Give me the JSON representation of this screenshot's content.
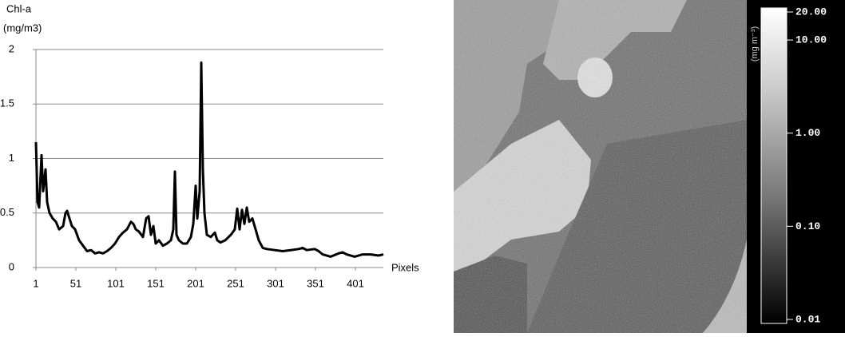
{
  "chart_data": {
    "type": "line",
    "ylabel": [
      "Chl-a",
      "(mg/m3)"
    ],
    "xlabel": "Pixels",
    "x": [
      1,
      3,
      5,
      8,
      10,
      13,
      15,
      18,
      22,
      26,
      30,
      35,
      38,
      40,
      43,
      46,
      50,
      55,
      60,
      65,
      70,
      75,
      80,
      85,
      90,
      95,
      100,
      105,
      110,
      115,
      120,
      123,
      126,
      130,
      135,
      139,
      142,
      145,
      148,
      151,
      155,
      160,
      165,
      170,
      173,
      175,
      177,
      180,
      185,
      190,
      195,
      198,
      201,
      203,
      206,
      208,
      210,
      212,
      215,
      220,
      225,
      228,
      232,
      238,
      245,
      250,
      253,
      256,
      259,
      262,
      265,
      268,
      272,
      276,
      280,
      285,
      290,
      300,
      310,
      320,
      330,
      335,
      340,
      350,
      355,
      360,
      370,
      380,
      385,
      390,
      400,
      410,
      420,
      430,
      436
    ],
    "values": [
      1.15,
      0.6,
      0.55,
      1.03,
      0.7,
      0.9,
      0.6,
      0.5,
      0.45,
      0.42,
      0.35,
      0.38,
      0.5,
      0.52,
      0.45,
      0.38,
      0.35,
      0.25,
      0.2,
      0.15,
      0.16,
      0.13,
      0.14,
      0.13,
      0.15,
      0.18,
      0.22,
      0.28,
      0.32,
      0.35,
      0.42,
      0.4,
      0.35,
      0.33,
      0.28,
      0.45,
      0.47,
      0.3,
      0.38,
      0.22,
      0.25,
      0.2,
      0.22,
      0.25,
      0.35,
      0.88,
      0.3,
      0.25,
      0.22,
      0.22,
      0.28,
      0.4,
      0.75,
      0.45,
      0.7,
      1.88,
      0.9,
      0.5,
      0.3,
      0.28,
      0.32,
      0.25,
      0.23,
      0.25,
      0.3,
      0.35,
      0.54,
      0.35,
      0.53,
      0.4,
      0.55,
      0.42,
      0.45,
      0.35,
      0.25,
      0.18,
      0.17,
      0.16,
      0.15,
      0.16,
      0.17,
      0.18,
      0.16,
      0.17,
      0.15,
      0.12,
      0.1,
      0.13,
      0.14,
      0.12,
      0.1,
      0.12,
      0.12,
      0.11,
      0.12
    ],
    "color": "#000000",
    "xlim": [
      1,
      436
    ],
    "ylim": [
      0,
      2
    ],
    "xticks": [
      1,
      51,
      101,
      151,
      201,
      251,
      301,
      351,
      401
    ],
    "yticks": [
      0,
      0.5,
      1,
      1.5,
      2
    ],
    "grid": true
  },
  "colorbar": {
    "label": "(mg m⁻³)",
    "scale": "log",
    "lim": [
      0.01,
      20
    ],
    "ticks": [
      {
        "value": 20,
        "label": "20.00"
      },
      {
        "value": 10,
        "label": "10.00"
      },
      {
        "value": 1,
        "label": "1.00"
      },
      {
        "value": 0.1,
        "label": "0.10"
      },
      {
        "value": 0.01,
        "label": "0.01"
      }
    ]
  }
}
